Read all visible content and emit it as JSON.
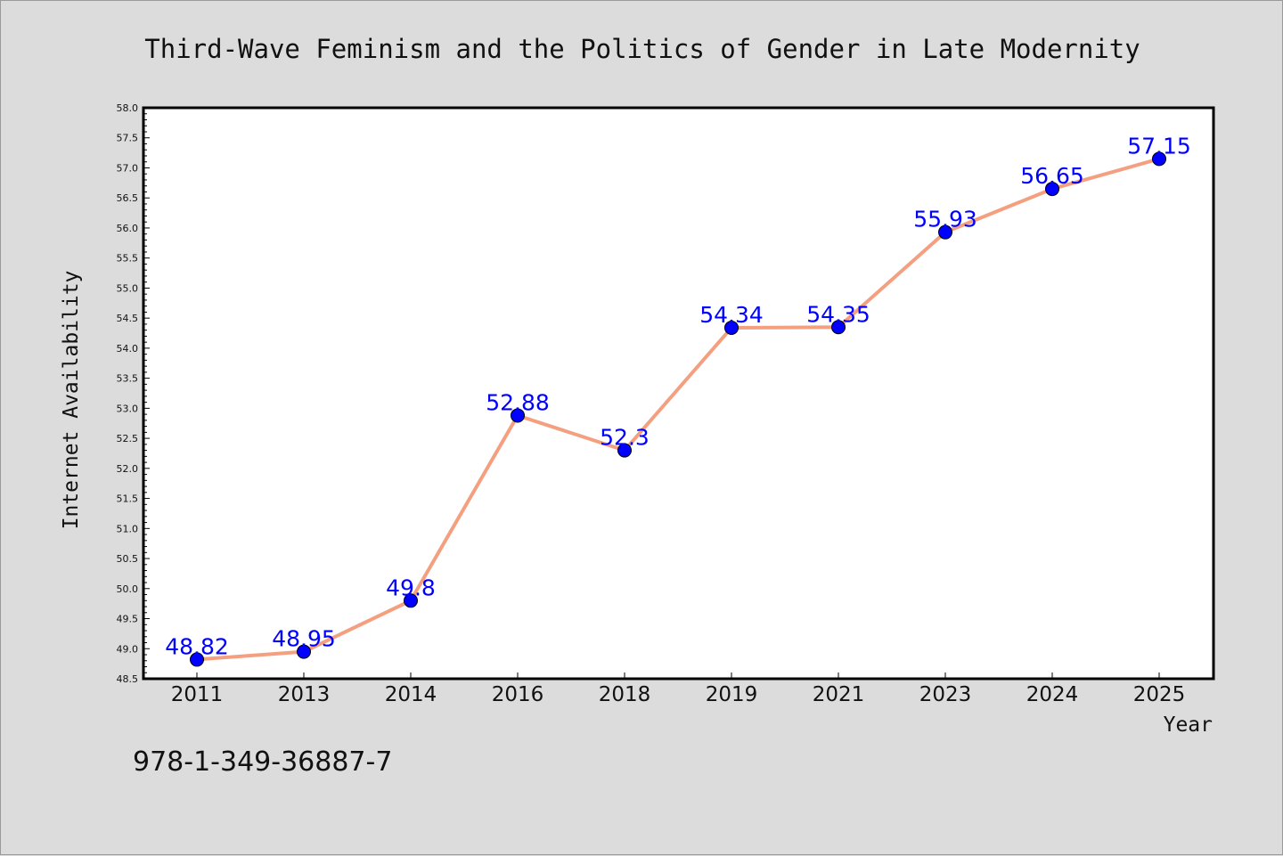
{
  "chart_data": {
    "type": "line",
    "title": "Third-Wave Feminism and the Politics of Gender in Late Modernity",
    "xlabel": "Year",
    "ylabel": "Internet Availability",
    "categories": [
      "2011",
      "2013",
      "2014",
      "2016",
      "2018",
      "2019",
      "2021",
      "2023",
      "2024",
      "2025"
    ],
    "series": [
      {
        "values": [
          48.82,
          48.95,
          49.8,
          52.88,
          52.3,
          54.34,
          54.35,
          55.93,
          56.65,
          57.15
        ],
        "labels": [
          "48.82",
          "48.95",
          "49.8",
          "52.88",
          "52.3",
          "54.34",
          "54.35",
          "55.93",
          "56.65",
          "57.15"
        ]
      }
    ],
    "ylim": [
      48.5,
      58.0
    ],
    "ytick_step": 0.5,
    "grid": false,
    "line_color": "#f4a080",
    "marker_color": "#0000ff",
    "label_color": "#0000ff",
    "background_color": "#dcdcdc",
    "plot_background": "#ffffff"
  },
  "isbn": "978-1-349-36887-7"
}
